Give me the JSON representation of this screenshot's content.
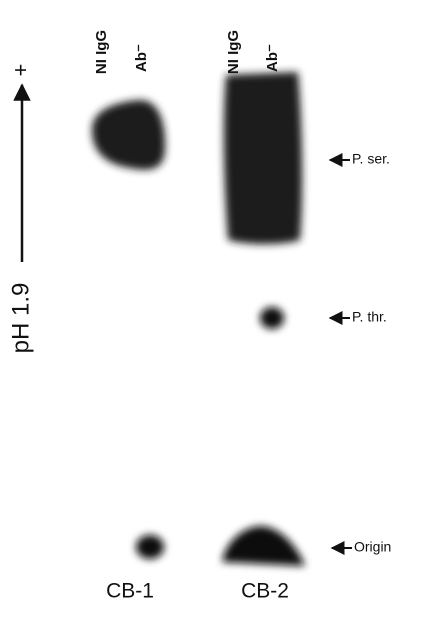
{
  "axis": {
    "polarity": "+",
    "label": "pH 1.9"
  },
  "panels": [
    {
      "name": "CB-1",
      "lanes": [
        "NI IgG",
        "Ab⁻"
      ]
    },
    {
      "name": "CB-2",
      "lanes": [
        "NI IgG",
        "Ab⁻"
      ]
    }
  ],
  "markers": [
    "P. ser.",
    "P. thr.",
    "Origin"
  ]
}
